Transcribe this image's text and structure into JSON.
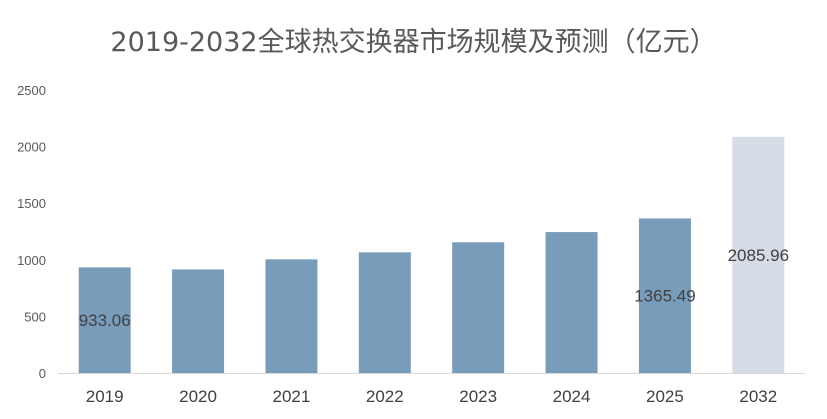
{
  "chart_data": {
    "type": "bar",
    "title": "2019-2032全球热交换器市场规模及预测（亿元）",
    "categories": [
      "2019",
      "2020",
      "2021",
      "2022",
      "2023",
      "2024",
      "2025",
      "2032"
    ],
    "values": [
      933.06,
      915,
      1004,
      1066,
      1155,
      1245,
      1365.49,
      2085.96
    ],
    "data_labels": {
      "0": "933.06",
      "6": "1365.49",
      "7": "2085.96"
    },
    "forecast_index": 7,
    "ylim": [
      0,
      2500
    ],
    "yticks": [
      0,
      500,
      1000,
      1500,
      2000,
      2500
    ],
    "grid": false,
    "colors": {
      "actual": "#7a9cbb",
      "forecast": "#d6dce5",
      "axis": "#d9d9d9"
    }
  }
}
